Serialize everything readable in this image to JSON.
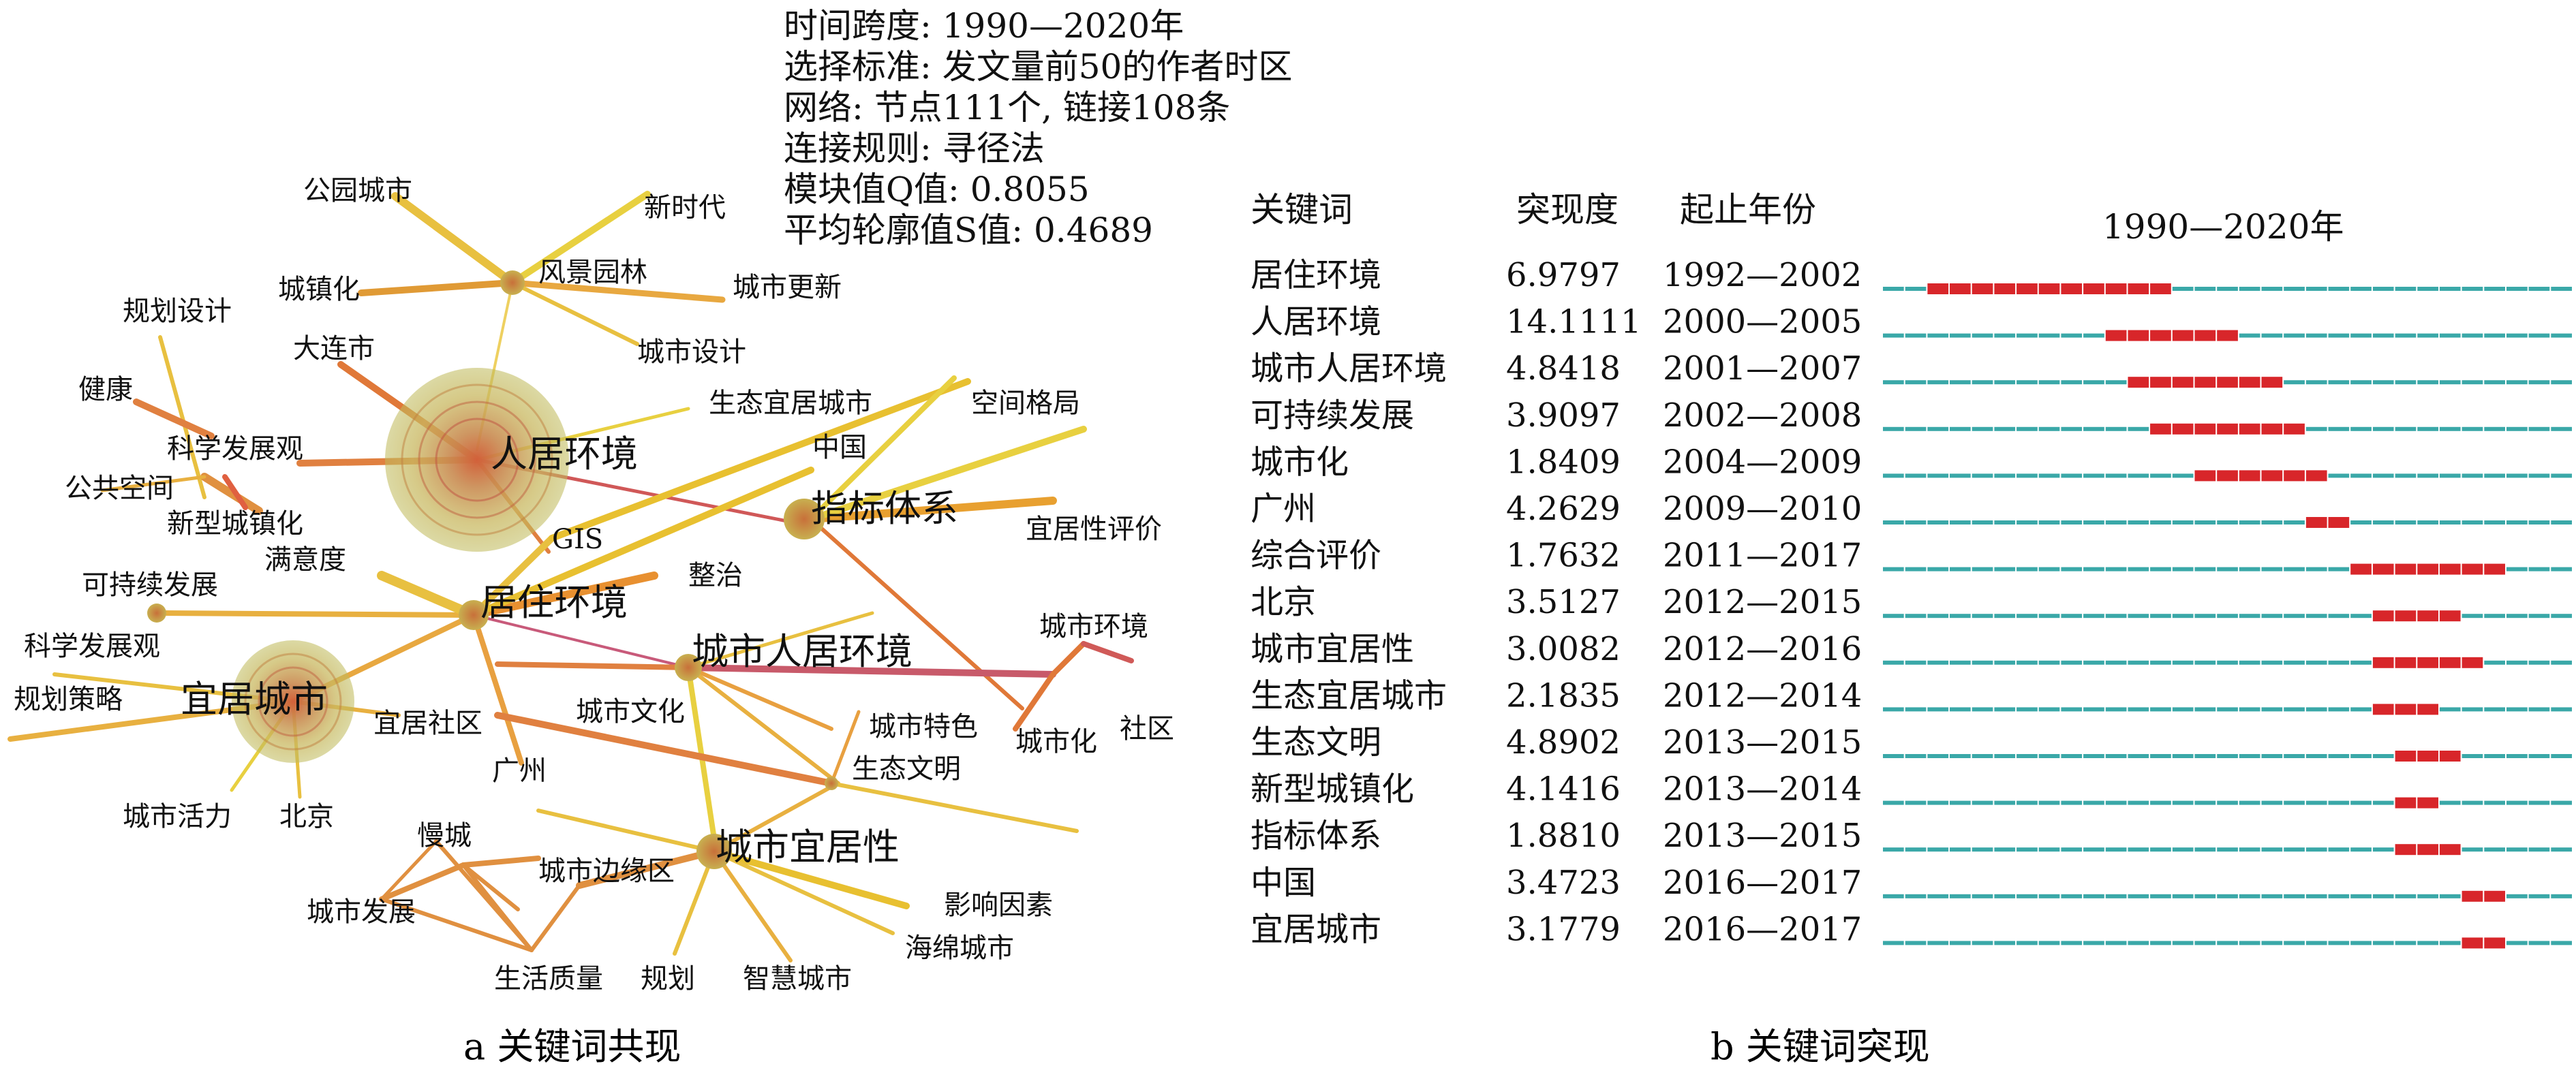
{
  "info_lines": [
    "时间跨度: 1990—2020年",
    "选择标准: 发文量前50的作者时区",
    "网络: 节点111个, 链接108条",
    "连接规则: 寻径法",
    "模块值Q值: 0.8055",
    "平均轮廓值S值: 0.4689"
  ],
  "captions": {
    "left": "a 关键词共现",
    "right": "b 关键词突现"
  },
  "network_labels": {
    "renju": "人居环境",
    "juzhu": "居住环境",
    "yiju_city": "宜居城市",
    "chengshi_renju": "城市人居环境",
    "zhibiao": "指标体系",
    "chengshi_yijuxing": "城市宜居性",
    "fengjing": "风景园林",
    "gongyuan": "公园城市",
    "xinshidai": "新时代",
    "chengzhenhua": "城镇化",
    "gengxin": "城市更新",
    "guihua_sheji": "规划设计",
    "dalian": "大连市",
    "chengshi_sheji": "城市设计",
    "jiankang": "健康",
    "shengtai_yiju_city": "生态宜居城市",
    "kongjian": "空间格局",
    "kexue1": "科学发展观",
    "zhongguo": "中国",
    "gonggong": "公共空间",
    "xinxing": "新型城镇化",
    "gis": "GIS",
    "yijuxing_pingjia": "宜居性评价",
    "manyi": "满意度",
    "zhengzhi": "整治",
    "kechixu": "可持续发展",
    "huanjing": "城市环境",
    "kexue2": "科学发展观",
    "celue": "规划策略",
    "yiju_shequ": "宜居社区",
    "wenhua": "城市文化",
    "tese": "城市特色",
    "chengshihua": "城市化",
    "shequ": "社区",
    "guangzhou": "广州",
    "shengtai_wenming": "生态文明",
    "huoli": "城市活力",
    "beijing": "北京",
    "mancheng": "慢城",
    "bianyuan": "城市边缘区",
    "fazhan": "城市发展",
    "yingxiang": "影响因素",
    "haimian": "海绵城市",
    "zhiliang": "生活质量",
    "guihua": "规划",
    "zhihui": "智慧城市"
  },
  "burst_table": {
    "headers": {
      "keyword": "关键词",
      "strength": "突现度",
      "years": "起止年份",
      "timeline": "1990—2020年"
    },
    "range": [
      1990,
      2020
    ],
    "colors": {
      "base": "#3aa8a8",
      "burst": "#d8262a"
    },
    "rows": [
      {
        "keyword": "居住环境",
        "strength": "6.9797",
        "years": "1992—2002",
        "begin": 1992,
        "end": 2002
      },
      {
        "keyword": "人居环境",
        "strength": "14.1111",
        "years": "2000—2005",
        "begin": 2000,
        "end": 2005
      },
      {
        "keyword": "城市人居环境",
        "strength": "4.8418",
        "years": "2001—2007",
        "begin": 2001,
        "end": 2007
      },
      {
        "keyword": "可持续发展",
        "strength": "3.9097",
        "years": "2002—2008",
        "begin": 2002,
        "end": 2008
      },
      {
        "keyword": "城市化",
        "strength": "1.8409",
        "years": "2004—2009",
        "begin": 2004,
        "end": 2009
      },
      {
        "keyword": "广州",
        "strength": "4.2629",
        "years": "2009—2010",
        "begin": 2009,
        "end": 2010
      },
      {
        "keyword": "综合评价",
        "strength": "1.7632",
        "years": "2011—2017",
        "begin": 2011,
        "end": 2017
      },
      {
        "keyword": "北京",
        "strength": "3.5127",
        "years": "2012—2015",
        "begin": 2012,
        "end": 2015
      },
      {
        "keyword": "城市宜居性",
        "strength": "3.0082",
        "years": "2012—2016",
        "begin": 2012,
        "end": 2016
      },
      {
        "keyword": "生态宜居城市",
        "strength": "2.1835",
        "years": "2012—2014",
        "begin": 2012,
        "end": 2014
      },
      {
        "keyword": "生态文明",
        "strength": "4.8902",
        "years": "2013—2015",
        "begin": 2013,
        "end": 2015
      },
      {
        "keyword": "新型城镇化",
        "strength": "4.1416",
        "years": "2013—2014",
        "begin": 2013,
        "end": 2014
      },
      {
        "keyword": "指标体系",
        "strength": "1.8810",
        "years": "2013—2015",
        "begin": 2013,
        "end": 2015
      },
      {
        "keyword": "中国",
        "strength": "3.4723",
        "years": "2016—2017",
        "begin": 2016,
        "end": 2017
      },
      {
        "keyword": "宜居城市",
        "strength": "3.1779",
        "years": "2016—2017",
        "begin": 2016,
        "end": 2017
      }
    ]
  }
}
